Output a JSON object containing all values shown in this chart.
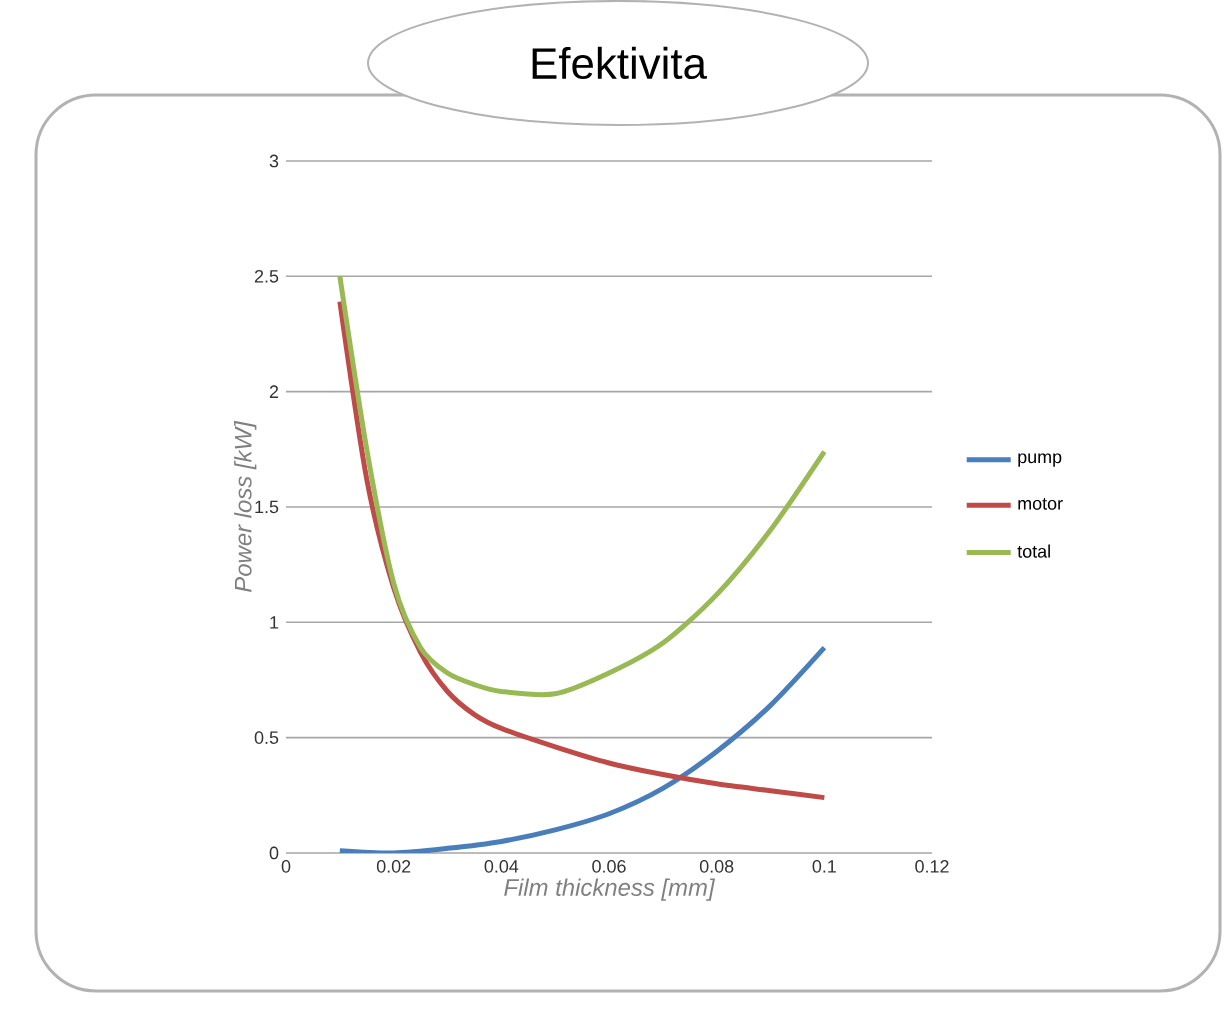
{
  "chart_data": {
    "type": "line",
    "title": "Efektivita",
    "xlabel": "Film thickness [mm]",
    "ylabel": "Power loss [kW]",
    "xlim": [
      0,
      0.12
    ],
    "xticks": [
      0,
      0.02,
      0.04,
      0.06,
      0.08,
      0.1,
      0.12
    ],
    "ylim": [
      0,
      3
    ],
    "yticks": [
      0,
      0.5,
      1,
      1.5,
      2,
      2.5,
      3
    ],
    "grid": "y",
    "legend": "right",
    "line_style": "solid",
    "marker": "none",
    "series": [
      {
        "name": "pump",
        "color": "#4a7ebb",
        "x": [
          0.01,
          0.02,
          0.03,
          0.04,
          0.05,
          0.06,
          0.07,
          0.08,
          0.09,
          0.1
        ],
        "values": [
          0.01,
          0.0,
          0.02,
          0.05,
          0.1,
          0.17,
          0.28,
          0.44,
          0.64,
          0.89
        ]
      },
      {
        "name": "motor",
        "color": "#be4b48",
        "x": [
          0.01,
          0.015,
          0.02,
          0.025,
          0.03,
          0.035,
          0.04,
          0.05,
          0.06,
          0.07,
          0.08,
          0.09,
          0.1
        ],
        "values": [
          2.39,
          1.62,
          1.15,
          0.87,
          0.7,
          0.6,
          0.54,
          0.46,
          0.39,
          0.34,
          0.3,
          0.27,
          0.24
        ]
      },
      {
        "name": "total",
        "color": "#98b954",
        "x": [
          0.01,
          0.015,
          0.02,
          0.025,
          0.03,
          0.035,
          0.04,
          0.05,
          0.06,
          0.07,
          0.08,
          0.09,
          0.1
        ],
        "values": [
          2.5,
          1.75,
          1.17,
          0.89,
          0.78,
          0.73,
          0.7,
          0.69,
          0.78,
          0.91,
          1.12,
          1.4,
          1.74
        ]
      }
    ]
  }
}
